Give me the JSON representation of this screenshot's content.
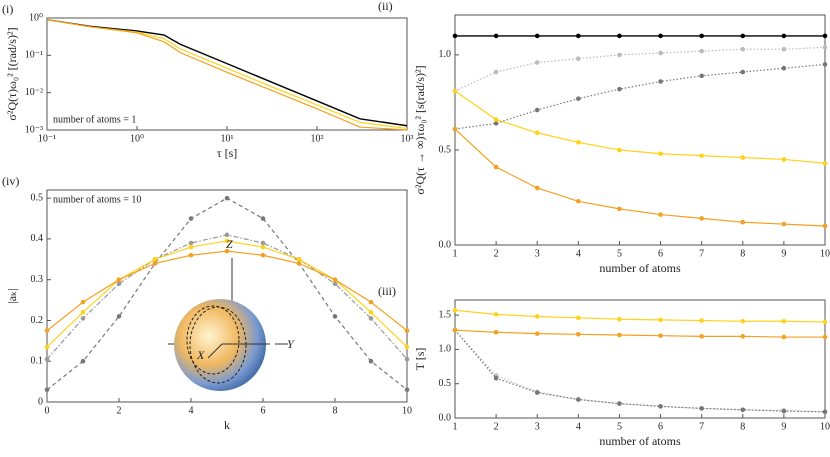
{
  "chart_data": [
    {
      "type": "line",
      "panel_label": "(i)",
      "xlabel": "τ [s]",
      "ylabel": "σ²Q(τ)ω₀² [(rad/s)²]",
      "annotation": "number of atoms = 1",
      "xlog": true,
      "ylog": true,
      "markers": false,
      "x": [
        0.1,
        0.3,
        1,
        2,
        3,
        10,
        30,
        100,
        300,
        1000
      ],
      "series": [
        {
          "color": "#000000",
          "linestyle": "solid",
          "values": [
            0.9,
            0.6,
            0.45,
            0.35,
            0.2,
            0.06,
            0.02,
            0.006,
            0.002,
            0.0013
          ]
        },
        {
          "color": "#ffd21a",
          "linestyle": "solid",
          "values": [
            0.9,
            0.58,
            0.42,
            0.28,
            0.15,
            0.045,
            0.015,
            0.0047,
            0.0016,
            0.0011
          ]
        },
        {
          "color": "#f5a020",
          "linestyle": "solid",
          "values": [
            0.9,
            0.58,
            0.4,
            0.23,
            0.12,
            0.035,
            0.012,
            0.0037,
            0.0012,
            0.001
          ]
        }
      ],
      "xlim": [
        0.1,
        1000
      ],
      "ylim": [
        0.001,
        1
      ],
      "xticks": [
        {
          "value": 0.1,
          "label": "10⁻¹"
        },
        {
          "value": 1,
          "label": "10⁰"
        },
        {
          "value": 10,
          "label": "10¹"
        },
        {
          "value": 100,
          "label": "10²"
        },
        {
          "value": 1000,
          "label": "10³"
        }
      ],
      "yticks": [
        {
          "value": 0.001,
          "label": "10⁻³"
        },
        {
          "value": 0.01,
          "label": "10⁻²"
        },
        {
          "value": 0.1,
          "label": "10⁻¹"
        },
        {
          "value": 1,
          "label": "10⁰"
        }
      ]
    },
    {
      "type": "line",
      "panel_label": "(ii)",
      "xlabel": "number of atoms",
      "ylabel": "σ²Q(τ → ∞)τω₀² [s(rad/s)²]",
      "markers": true,
      "x": [
        1,
        2,
        3,
        4,
        5,
        6,
        7,
        8,
        9,
        10
      ],
      "series": [
        {
          "color": "#000000",
          "linestyle": "solid",
          "values": [
            1.1,
            1.1,
            1.1,
            1.1,
            1.1,
            1.1,
            1.1,
            1.1,
            1.1,
            1.1
          ]
        },
        {
          "color": "#bbbbbb",
          "linestyle": "dotted",
          "values": [
            0.81,
            0.91,
            0.96,
            0.98,
            1.0,
            1.01,
            1.02,
            1.03,
            1.03,
            1.04
          ]
        },
        {
          "color": "#777777",
          "linestyle": "dotted",
          "values": [
            0.61,
            0.64,
            0.71,
            0.77,
            0.82,
            0.86,
            0.89,
            0.91,
            0.93,
            0.95
          ]
        },
        {
          "color": "#ffd21a",
          "linestyle": "solid",
          "values": [
            0.81,
            0.66,
            0.59,
            0.54,
            0.5,
            0.48,
            0.47,
            0.46,
            0.45,
            0.43
          ]
        },
        {
          "color": "#f5a020",
          "linestyle": "solid",
          "values": [
            0.61,
            0.41,
            0.3,
            0.23,
            0.19,
            0.16,
            0.14,
            0.12,
            0.11,
            0.1
          ]
        }
      ],
      "xlim": [
        1,
        10
      ],
      "ylim": [
        0,
        1.21
      ],
      "xticks": [
        1,
        2,
        3,
        4,
        5,
        6,
        7,
        8,
        9,
        10
      ],
      "yticks": [
        {
          "value": 0,
          "label": "0.0"
        },
        {
          "value": 0.5,
          "label": "0.5"
        },
        {
          "value": 1,
          "label": "1.0"
        }
      ]
    },
    {
      "type": "line",
      "panel_label": "(iii)",
      "xlabel": "number of atoms",
      "ylabel": "T [s]",
      "markers": true,
      "x": [
        1,
        2,
        3,
        4,
        5,
        6,
        7,
        8,
        9,
        10
      ],
      "series": [
        {
          "color": "#bbbbbb",
          "linestyle": "dotted",
          "values": [
            1.28,
            0.62,
            0.38,
            0.27,
            0.21,
            0.17,
            0.14,
            0.12,
            0.11,
            0.09
          ]
        },
        {
          "color": "#777777",
          "linestyle": "dotted",
          "values": [
            1.28,
            0.58,
            0.37,
            0.27,
            0.21,
            0.17,
            0.14,
            0.12,
            0.1,
            0.09
          ]
        },
        {
          "color": "#ffd21a",
          "linestyle": "solid",
          "values": [
            1.57,
            1.51,
            1.48,
            1.46,
            1.44,
            1.43,
            1.42,
            1.41,
            1.41,
            1.4
          ]
        },
        {
          "color": "#f5a020",
          "linestyle": "solid",
          "values": [
            1.28,
            1.25,
            1.23,
            1.22,
            1.21,
            1.2,
            1.19,
            1.19,
            1.18,
            1.18
          ]
        }
      ],
      "xlim": [
        1,
        10
      ],
      "ylim": [
        0,
        1.72
      ],
      "xticks": [
        1,
        2,
        3,
        4,
        5,
        6,
        7,
        8,
        9,
        10
      ],
      "yticks": [
        {
          "value": 0,
          "label": "0.0"
        },
        {
          "value": 0.5,
          "label": "0.5"
        },
        {
          "value": 1,
          "label": "1.0"
        },
        {
          "value": 1.5,
          "label": "1.5"
        }
      ]
    },
    {
      "type": "line",
      "panel_label": "(iv)",
      "xlabel": "k",
      "ylabel": "|aₖ|",
      "annotation": "number of atoms = 10",
      "markers": true,
      "inset_labels": [
        "Z",
        "X",
        "Y"
      ],
      "x": [
        0,
        1,
        2,
        3,
        4,
        5,
        6,
        7,
        8,
        9,
        10
      ],
      "series": [
        {
          "color": "#777777",
          "linestyle": "dashed",
          "values": [
            0.03,
            0.1,
            0.21,
            0.34,
            0.45,
            0.5,
            0.45,
            0.34,
            0.21,
            0.1,
            0.03
          ]
        },
        {
          "color": "#999999",
          "linestyle": "dashdot",
          "values": [
            0.105,
            0.205,
            0.29,
            0.35,
            0.39,
            0.41,
            0.39,
            0.35,
            0.29,
            0.205,
            0.105
          ]
        },
        {
          "color": "#ffd21a",
          "linestyle": "solid",
          "values": [
            0.135,
            0.22,
            0.3,
            0.35,
            0.38,
            0.395,
            0.38,
            0.35,
            0.3,
            0.22,
            0.135
          ]
        },
        {
          "color": "#f5a020",
          "linestyle": "solid",
          "values": [
            0.175,
            0.245,
            0.3,
            0.34,
            0.36,
            0.37,
            0.36,
            0.34,
            0.3,
            0.245,
            0.175
          ]
        }
      ],
      "xlim": [
        0,
        10
      ],
      "ylim": [
        0,
        0.52
      ],
      "xticks": [
        0,
        2,
        4,
        6,
        8,
        10
      ],
      "yticks": [
        0,
        0.1,
        0.2,
        0.3,
        0.4,
        0.5
      ]
    }
  ]
}
